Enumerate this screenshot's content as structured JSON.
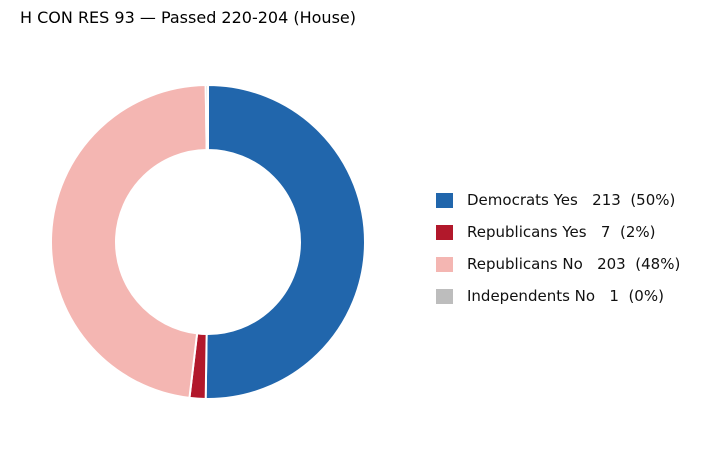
{
  "chart_data": {
    "type": "pie",
    "donut": true,
    "title": "H CON RES 93 — Passed 220-204 (House)",
    "start": "top",
    "direction": "clockwise",
    "slices": [
      {
        "label": "Democrats Yes",
        "value": 213,
        "pct_text": "(50%)",
        "color": "#2166ac"
      },
      {
        "label": "Republicans Yes",
        "value": 7,
        "pct_text": "(2%)",
        "color": "#b2182b"
      },
      {
        "label": "Republicans No",
        "value": 203,
        "pct_text": "(48%)",
        "color": "#f4b6b2"
      },
      {
        "label": "Independents No",
        "value": 1,
        "pct_text": "(0%)",
        "color": "#bdbdbd"
      }
    ],
    "legend": {
      "placement": "right"
    }
  }
}
